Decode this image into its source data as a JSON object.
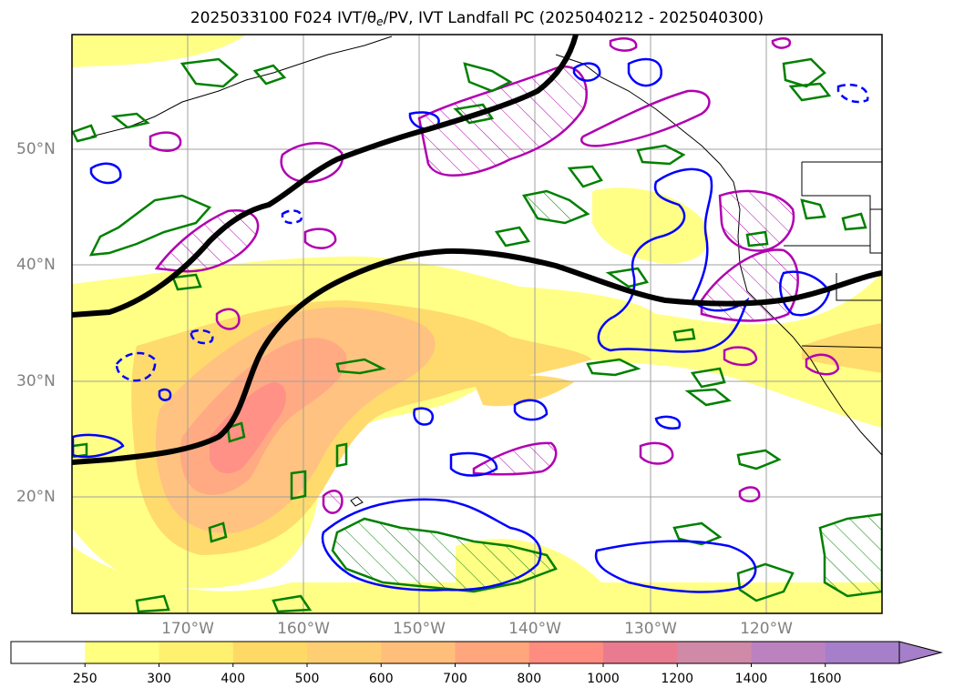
{
  "title": {
    "prefix": "2025033100 F024 IVT/",
    "theta": "θ",
    "sub": "e",
    "suffix": "/PV, IVT Landfall PC (2025040212 - 2025040300)"
  },
  "map": {
    "lat_labels": [
      "50°N",
      "40°N",
      "30°N",
      "20°N"
    ],
    "lon_labels": [
      "170°W",
      "160°W",
      "150°W",
      "140°W",
      "130°W",
      "120°W"
    ],
    "layers": {
      "ivt_fill": "IVT shading (kg m-1 s-1)",
      "theta_e_contours": "green",
      "pv_contours": "blue",
      "landfall_pc": "magenta hatched",
      "jet_axis": "black thick line"
    }
  },
  "colorbar": {
    "ticks": [
      "250",
      "300",
      "400",
      "500",
      "600",
      "700",
      "800",
      "1000",
      "1200",
      "1400",
      "1600"
    ],
    "colors": [
      "#ffffff",
      "#ffff80",
      "#fff170",
      "#ffd966",
      "#ffce73",
      "#ffbf7a",
      "#ffa67d",
      "#ff8c80",
      "#e87b8f",
      "#d08aa8",
      "#bb82bf",
      "#a57fc9"
    ],
    "extend": "max"
  }
}
